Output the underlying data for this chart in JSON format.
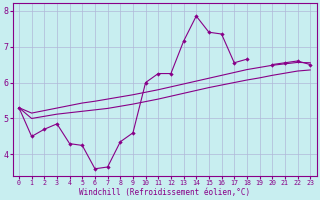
{
  "xlabel": "Windchill (Refroidissement éolien,°C)",
  "bg_color": "#c8eef0",
  "grid_color": "#b0b8d8",
  "line_color": "#880088",
  "x_data": [
    0,
    1,
    2,
    3,
    4,
    5,
    6,
    7,
    8,
    9,
    10,
    11,
    12,
    13,
    14,
    15,
    16,
    17,
    18,
    19,
    20,
    21,
    22,
    23
  ],
  "y_main": [
    5.3,
    4.5,
    4.7,
    4.85,
    4.3,
    4.25,
    3.6,
    3.65,
    4.35,
    4.6,
    6.0,
    6.25,
    6.25,
    7.15,
    7.85,
    7.4,
    7.35,
    6.55,
    6.65,
    null,
    6.5,
    6.55,
    6.6,
    6.5
  ],
  "y_upper": [
    5.3,
    5.15,
    5.22,
    5.29,
    5.36,
    5.43,
    5.48,
    5.54,
    5.6,
    5.66,
    5.73,
    5.8,
    5.88,
    5.96,
    6.04,
    6.12,
    6.2,
    6.28,
    6.36,
    6.42,
    6.48,
    6.52,
    6.56,
    6.55
  ],
  "y_lower": [
    5.3,
    5.0,
    5.06,
    5.12,
    5.16,
    5.2,
    5.24,
    5.28,
    5.34,
    5.4,
    5.47,
    5.54,
    5.62,
    5.7,
    5.78,
    5.86,
    5.93,
    6.0,
    6.07,
    6.13,
    6.2,
    6.26,
    6.32,
    6.35
  ],
  "ylim": [
    3.4,
    8.2
  ],
  "xlim": [
    -0.5,
    23.5
  ],
  "yticks": [
    4,
    5,
    6,
    7,
    8
  ],
  "xticks": [
    0,
    1,
    2,
    3,
    4,
    5,
    6,
    7,
    8,
    9,
    10,
    11,
    12,
    13,
    14,
    15,
    16,
    17,
    18,
    19,
    20,
    21,
    22,
    23
  ]
}
